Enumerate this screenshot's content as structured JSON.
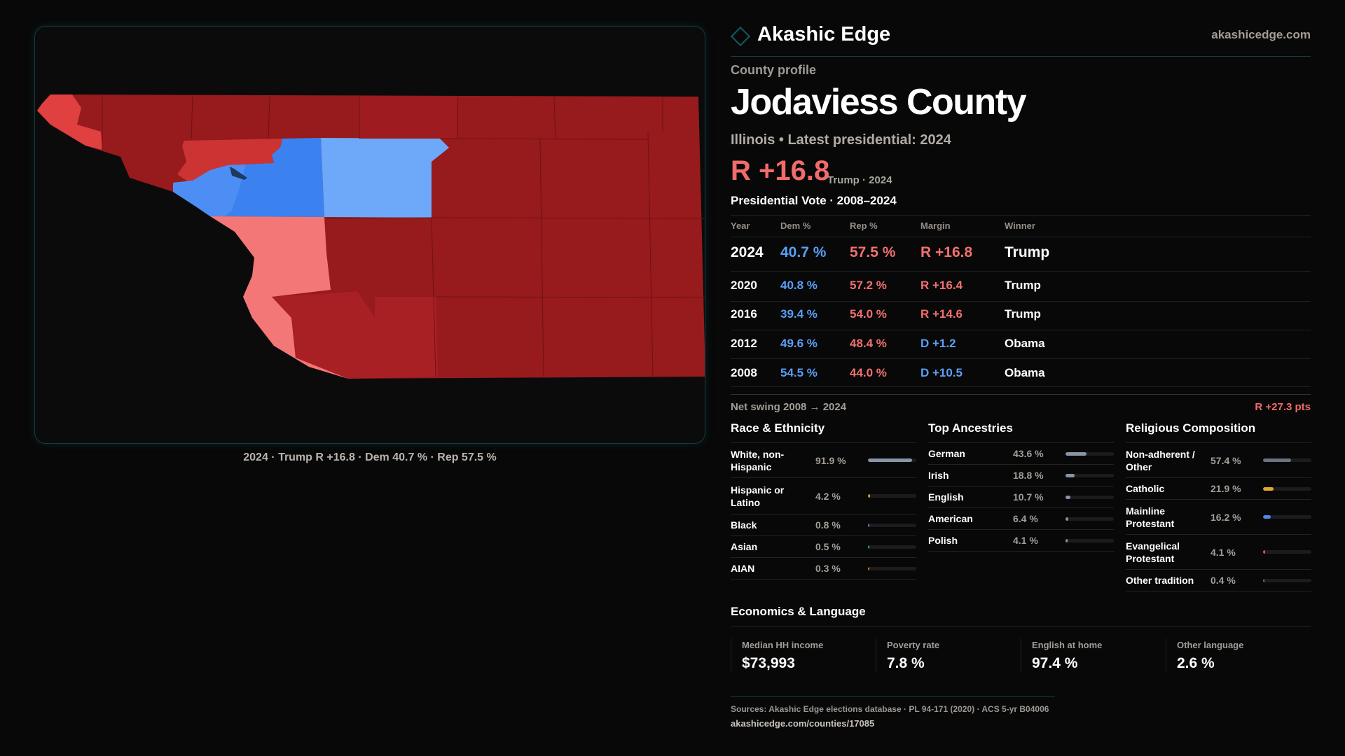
{
  "brand": {
    "name": "Akashic Edge",
    "site": "akashicedge.com"
  },
  "profile": {
    "kicker": "County profile",
    "title": "Jodaviess County",
    "subtitle": "Illinois • Latest presidential: 2024",
    "margin": "R +16.8",
    "margin_sub": "Trump · 2024"
  },
  "map": {
    "caption": "2024 · Trump R +16.8 · Dem 40.7 % · Rep 57.5 %",
    "colors": {
      "strong_rep": "#971a1d",
      "rep": "#a82024",
      "lean_rep": "#cc3333",
      "bright_rep": "#e04040",
      "light_rep": "#f47777",
      "dem": "#3b82f0",
      "light_dem": "#6ea8f8",
      "dark_dem": "#1e3a5f"
    }
  },
  "votes": {
    "title": "Presidential Vote · 2008–2024",
    "headers": [
      "Year",
      "Dem %",
      "Rep %",
      "Margin",
      "Winner"
    ],
    "rows": [
      {
        "year": "2024",
        "dem": "40.7 %",
        "rep": "57.5 %",
        "margin": "R +16.8",
        "party": "rep",
        "winner": "Trump"
      },
      {
        "year": "2020",
        "dem": "40.8 %",
        "rep": "57.2 %",
        "margin": "R +16.4",
        "party": "rep",
        "winner": "Trump"
      },
      {
        "year": "2016",
        "dem": "39.4 %",
        "rep": "54.0 %",
        "margin": "R +14.6",
        "party": "rep",
        "winner": "Trump"
      },
      {
        "year": "2012",
        "dem": "49.6 %",
        "rep": "48.4 %",
        "margin": "D +1.2",
        "party": "dem",
        "winner": "Obama"
      },
      {
        "year": "2008",
        "dem": "54.5 %",
        "rep": "44.0 %",
        "margin": "D +10.5",
        "party": "dem",
        "winner": "Obama"
      }
    ],
    "net_swing_label": "Net swing 2008 → 2024",
    "net_swing_value": "R +27.3 pts"
  },
  "demographics": [
    {
      "title": "Race & Ethnicity",
      "items": [
        {
          "label": "White, non-Hispanic",
          "value": "91.9 %",
          "pct": 91.9,
          "color": "#8895a7"
        },
        {
          "label": "Hispanic or Latino",
          "value": "4.2 %",
          "pct": 4.2,
          "color": "#d99a1e"
        },
        {
          "label": "Black",
          "value": "0.8 %",
          "pct": 0.8,
          "color": "#8b6fd8"
        },
        {
          "label": "Asian",
          "value": "0.5 %",
          "pct": 0.5,
          "color": "#2bb594"
        },
        {
          "label": "AIAN",
          "value": "0.3 %",
          "pct": 0.3,
          "color": "#d97a1e"
        }
      ]
    },
    {
      "title": "Top Ancestries",
      "items": [
        {
          "label": "German",
          "value": "43.6 %",
          "pct": 43.6,
          "color": "#8895a7"
        },
        {
          "label": "Irish",
          "value": "18.8 %",
          "pct": 18.8,
          "color": "#8895a7"
        },
        {
          "label": "English",
          "value": "10.7 %",
          "pct": 10.7,
          "color": "#8895a7"
        },
        {
          "label": "American",
          "value": "6.4 %",
          "pct": 6.4,
          "color": "#8895a7"
        },
        {
          "label": "Polish",
          "value": "4.1 %",
          "pct": 4.1,
          "color": "#8895a7"
        }
      ]
    },
    {
      "title": "Religious Composition",
      "items": [
        {
          "label": "Non-adherent / Other",
          "value": "57.4 %",
          "pct": 57.4,
          "color": "#6b7280"
        },
        {
          "label": "Catholic",
          "value": "21.9 %",
          "pct": 21.9,
          "color": "#e0a82e"
        },
        {
          "label": "Mainline Protestant",
          "value": "16.2 %",
          "pct": 16.2,
          "color": "#4a8ae8"
        },
        {
          "label": "Evangelical Protestant",
          "value": "4.1 %",
          "pct": 4.1,
          "color": "#e05050"
        },
        {
          "label": "Other tradition",
          "value": "0.4 %",
          "pct": 0.4,
          "color": "#6b7280"
        }
      ]
    }
  ],
  "economics": {
    "title": "Economics & Language",
    "items": [
      {
        "label": "Median HH income",
        "value": "$73,993"
      },
      {
        "label": "Poverty rate",
        "value": "7.8 %"
      },
      {
        "label": "English at home",
        "value": "97.4 %"
      },
      {
        "label": "Other language",
        "value": "2.6 %"
      }
    ]
  },
  "footer": {
    "sources": "Sources: Akashic Edge elections database · PL 94-171 (2020) · ACS 5-yr B04006",
    "url": "akashicedge.com/counties/17085"
  }
}
